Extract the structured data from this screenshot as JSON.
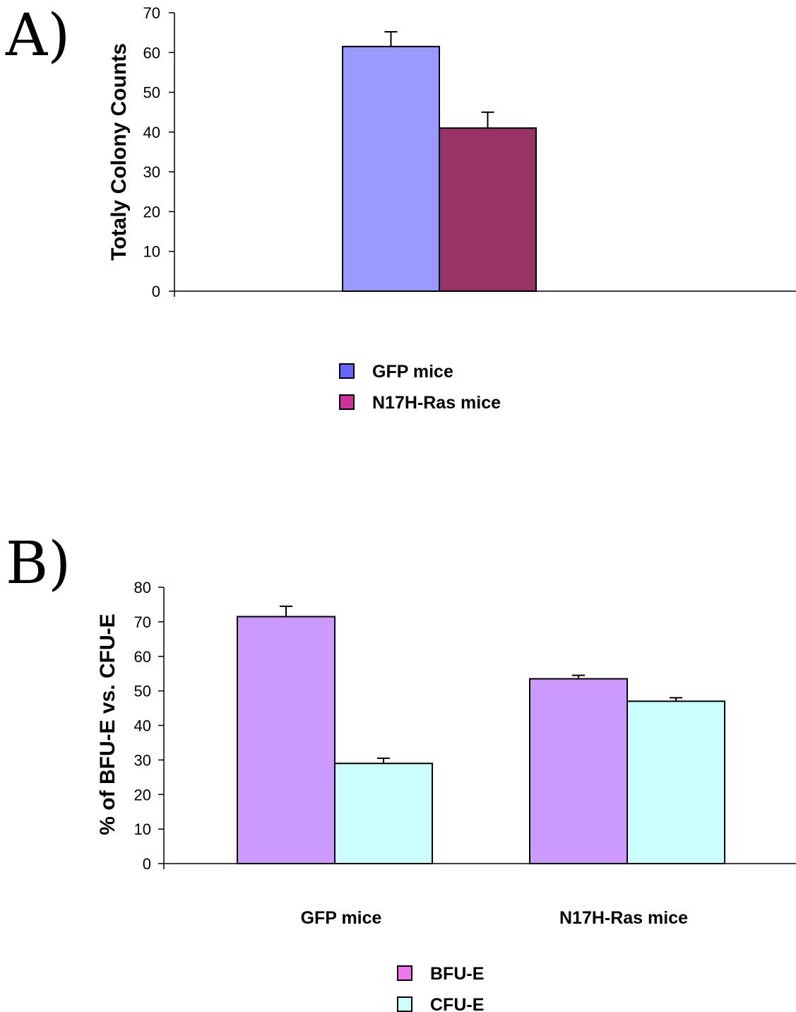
{
  "figure": {
    "panel_a_label": "A)",
    "panel_b_label": "B)"
  },
  "chart_data": [
    {
      "type": "bar",
      "panel": "A)",
      "categories": [
        ""
      ],
      "series": [
        {
          "name": "GFP mice",
          "values": [
            61.5
          ],
          "errors": [
            3.7
          ],
          "color": "#9999ff"
        },
        {
          "name": "N17H-Ras mice",
          "values": [
            41
          ],
          "errors": [
            4
          ],
          "color": "#993366"
        }
      ],
      "legend_colors": [
        "#6666ff",
        "#cc3399"
      ],
      "ylabel": "Totaly Colony Counts",
      "ylim": [
        0,
        70
      ],
      "yticks": [
        0,
        10,
        20,
        30,
        40,
        50,
        60,
        70
      ],
      "grid": false,
      "legend": "bottom-center"
    },
    {
      "type": "bar",
      "panel": "B)",
      "categories": [
        "GFP mice",
        "N17H-Ras mice"
      ],
      "series": [
        {
          "name": "BFU-E",
          "values": [
            71.5,
            53.5
          ],
          "errors": [
            3,
            1
          ],
          "color": "#cc99ff"
        },
        {
          "name": "CFU-E",
          "values": [
            29,
            47
          ],
          "errors": [
            1.5,
            1
          ],
          "color": "#ccffff"
        }
      ],
      "legend_colors": [
        "#ee77ee",
        "#ccffff"
      ],
      "ylabel": "% of BFU-E vs. CFU-E",
      "ylim": [
        0,
        80
      ],
      "yticks": [
        0,
        10,
        20,
        30,
        40,
        50,
        60,
        70,
        80
      ],
      "grid": false,
      "legend": "bottom-center"
    }
  ]
}
